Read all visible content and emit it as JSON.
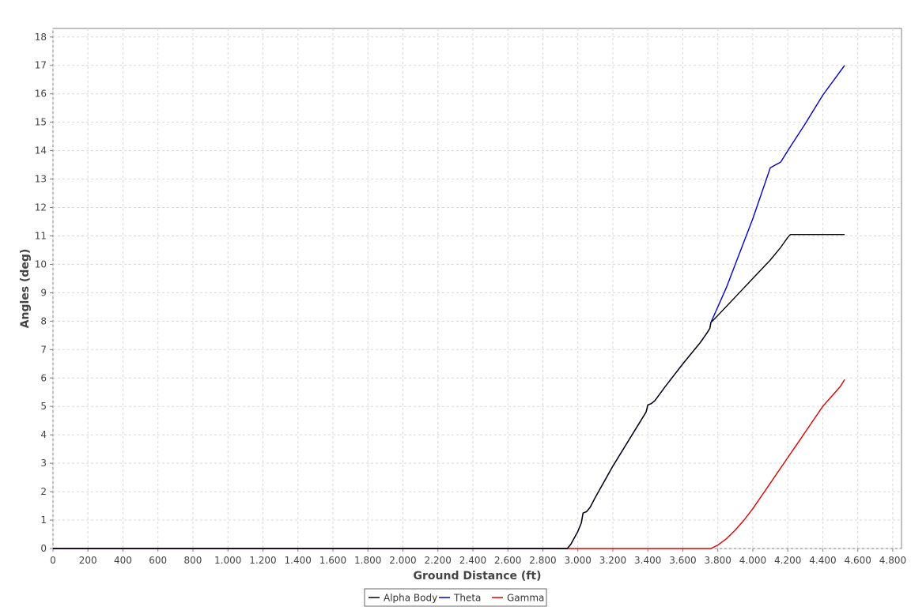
{
  "chart_data": {
    "type": "line",
    "title": "",
    "xlabel": "Ground Distance (ft)",
    "ylabel": "Angles (deg)",
    "xlim": [
      0,
      4850
    ],
    "ylim": [
      0,
      18.3
    ],
    "x_ticks": [
      "0",
      "200",
      "400",
      "600",
      "800",
      "1.000",
      "1.200",
      "1.400",
      "1.600",
      "1.800",
      "2.000",
      "2.200",
      "2.400",
      "2.600",
      "2.800",
      "3.000",
      "3.200",
      "3.400",
      "3.600",
      "3.800",
      "4.000",
      "4.200",
      "4.400",
      "4.600",
      "4.800"
    ],
    "x_tick_values": [
      0,
      200,
      400,
      600,
      800,
      1000,
      1200,
      1400,
      1600,
      1800,
      2000,
      2200,
      2400,
      2600,
      2800,
      3000,
      3200,
      3400,
      3600,
      3800,
      4000,
      4200,
      4400,
      4600,
      4800
    ],
    "y_ticks": [
      0,
      1,
      2,
      3,
      4,
      5,
      6,
      7,
      8,
      9,
      10,
      11,
      12,
      13,
      14,
      15,
      16,
      17,
      18
    ],
    "grid": true,
    "legend_position": "bottom-center",
    "series": [
      {
        "name": "Alpha Body",
        "color": "#000000",
        "points": [
          [
            0,
            0
          ],
          [
            2940,
            0
          ],
          [
            2960,
            0.15
          ],
          [
            3000,
            0.6
          ],
          [
            3020,
            0.9
          ],
          [
            3030,
            1.25
          ],
          [
            3050,
            1.3
          ],
          [
            3070,
            1.45
          ],
          [
            3100,
            1.8
          ],
          [
            3200,
            2.9
          ],
          [
            3300,
            3.9
          ],
          [
            3390,
            4.8
          ],
          [
            3400,
            5.05
          ],
          [
            3420,
            5.1
          ],
          [
            3440,
            5.2
          ],
          [
            3500,
            5.7
          ],
          [
            3600,
            6.5
          ],
          [
            3700,
            7.25
          ],
          [
            3740,
            7.6
          ],
          [
            3755,
            7.75
          ],
          [
            3760,
            7.95
          ],
          [
            3800,
            8.2
          ],
          [
            3900,
            8.85
          ],
          [
            4000,
            9.5
          ],
          [
            4100,
            10.15
          ],
          [
            4160,
            10.6
          ],
          [
            4200,
            10.95
          ],
          [
            4215,
            11.05
          ],
          [
            4300,
            11.05
          ],
          [
            4400,
            11.05
          ],
          [
            4525,
            11.05
          ]
        ]
      },
      {
        "name": "Theta",
        "color": "#0000cc",
        "points": [
          [
            0,
            0
          ],
          [
            2940,
            0
          ],
          [
            2960,
            0.15
          ],
          [
            3000,
            0.6
          ],
          [
            3020,
            0.9
          ],
          [
            3030,
            1.25
          ],
          [
            3050,
            1.3
          ],
          [
            3070,
            1.45
          ],
          [
            3100,
            1.8
          ],
          [
            3200,
            2.9
          ],
          [
            3300,
            3.9
          ],
          [
            3390,
            4.8
          ],
          [
            3400,
            5.05
          ],
          [
            3420,
            5.1
          ],
          [
            3440,
            5.2
          ],
          [
            3500,
            5.7
          ],
          [
            3600,
            6.5
          ],
          [
            3700,
            7.25
          ],
          [
            3740,
            7.6
          ],
          [
            3755,
            7.75
          ],
          [
            3760,
            7.95
          ],
          [
            3800,
            8.5
          ],
          [
            3850,
            9.2
          ],
          [
            3900,
            10.0
          ],
          [
            4000,
            11.6
          ],
          [
            4100,
            13.4
          ],
          [
            4160,
            13.6
          ],
          [
            4200,
            14.0
          ],
          [
            4300,
            14.95
          ],
          [
            4400,
            15.95
          ],
          [
            4525,
            17.0
          ]
        ]
      },
      {
        "name": "Gamma",
        "color": "#dd0000",
        "points": [
          [
            0,
            0
          ],
          [
            3740,
            0
          ],
          [
            3760,
            0
          ],
          [
            3800,
            0.12
          ],
          [
            3850,
            0.35
          ],
          [
            3900,
            0.65
          ],
          [
            3950,
            1.0
          ],
          [
            4000,
            1.4
          ],
          [
            4050,
            1.85
          ],
          [
            4100,
            2.3
          ],
          [
            4150,
            2.75
          ],
          [
            4200,
            3.2
          ],
          [
            4250,
            3.65
          ],
          [
            4300,
            4.1
          ],
          [
            4350,
            4.55
          ],
          [
            4400,
            5.0
          ],
          [
            4450,
            5.35
          ],
          [
            4500,
            5.7
          ],
          [
            4525,
            5.95
          ]
        ]
      }
    ]
  }
}
